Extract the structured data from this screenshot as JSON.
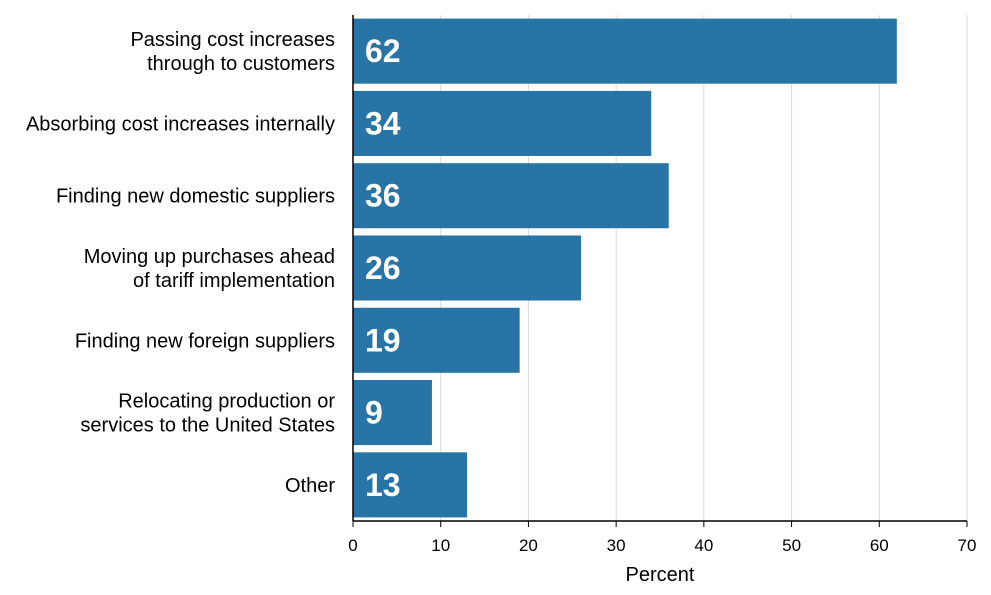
{
  "chart_data": {
    "type": "bar",
    "orientation": "horizontal",
    "title": "",
    "xlabel": "Percent",
    "ylabel": "",
    "xlim": [
      0,
      70
    ],
    "xticks": [
      0,
      10,
      20,
      30,
      40,
      50,
      60,
      70
    ],
    "grid": true,
    "categories": [
      [
        "Passing cost increases",
        "through to customers"
      ],
      [
        "Absorbing cost increases internally"
      ],
      [
        "Finding new domestic suppliers"
      ],
      [
        "Moving up purchases ahead",
        "of tariff implementation"
      ],
      [
        "Finding new foreign suppliers"
      ],
      [
        "Relocating production or",
        "services to the United States"
      ],
      [
        "Other"
      ]
    ],
    "values": [
      62,
      34,
      36,
      26,
      19,
      9,
      13
    ],
    "value_labels": [
      "62",
      "34",
      "36",
      "26",
      "19",
      "9",
      "13"
    ],
    "colors": {
      "bar": "#2874a6",
      "value_text": "#ffffff",
      "grid": "#d9d9d9"
    }
  }
}
